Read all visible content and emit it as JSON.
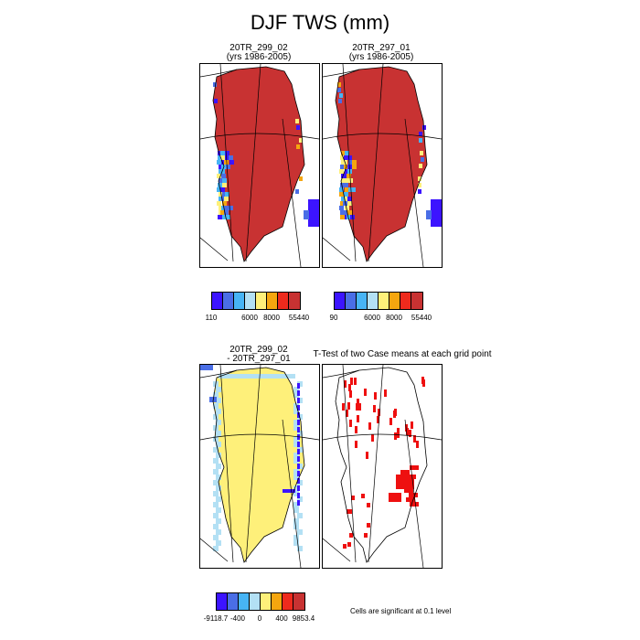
{
  "title": "DJF TWS (mm)",
  "panels": [
    {
      "title_line1": "20TR_299_02",
      "title_line2": "(yrs 1986-2005)"
    },
    {
      "title_line1": "20TR_297_01",
      "title_line2": "(yrs 1986-2005)"
    },
    {
      "title_line1": "20TR_299_02",
      "title_line2": "- 20TR_297_01"
    },
    {
      "title_line1": "T-Test of two Case means at each grid point"
    }
  ],
  "legends": [
    {
      "colors": [
        "#3c14ff",
        "#4a6ee6",
        "#47b4f5",
        "#b3e0f4",
        "#fef07a",
        "#f5a60f",
        "#ee2a1d",
        "#c83232"
      ],
      "labels": [
        "110",
        "6000",
        "8000",
        "55440"
      ]
    },
    {
      "colors": [
        "#3c14ff",
        "#4a6ee6",
        "#47b4f5",
        "#b3e0f4",
        "#fef07a",
        "#f5a60f",
        "#ee2a1d",
        "#c83232"
      ],
      "labels": [
        "90",
        "6000",
        "8000",
        "55440"
      ]
    },
    {
      "colors": [
        "#3c14ff",
        "#4a6ee6",
        "#47b4f5",
        "#b3e0f4",
        "#fef07a",
        "#f5a60f",
        "#ee2a1d",
        "#c83232"
      ],
      "labels": [
        "-9118.7",
        "-400",
        "0",
        "400",
        "9853.4"
      ]
    }
  ],
  "note": "Cells are significant at 0.1 level",
  "chart_data": [
    {
      "type": "heatmap",
      "title": "20TR_299_02 (yrs 1986-2005)",
      "region": "Greenland",
      "levels": [
        110,
        6000,
        8000,
        55440
      ],
      "dominant_class": "> 8000"
    },
    {
      "type": "heatmap",
      "title": "20TR_297_01 (yrs 1986-2005)",
      "region": "Greenland",
      "levels": [
        90,
        6000,
        8000,
        55440
      ],
      "dominant_class": "> 8000"
    },
    {
      "type": "heatmap",
      "title": "20TR_299_02 - 20TR_297_01",
      "region": "Greenland",
      "levels": [
        -9118.7,
        -400,
        0,
        400,
        9853.4
      ],
      "dominant_class": "0 to 400"
    },
    {
      "type": "heatmap",
      "title": "T-Test of two Case means at each grid point",
      "region": "Greenland",
      "significance_level": 0.1
    }
  ]
}
